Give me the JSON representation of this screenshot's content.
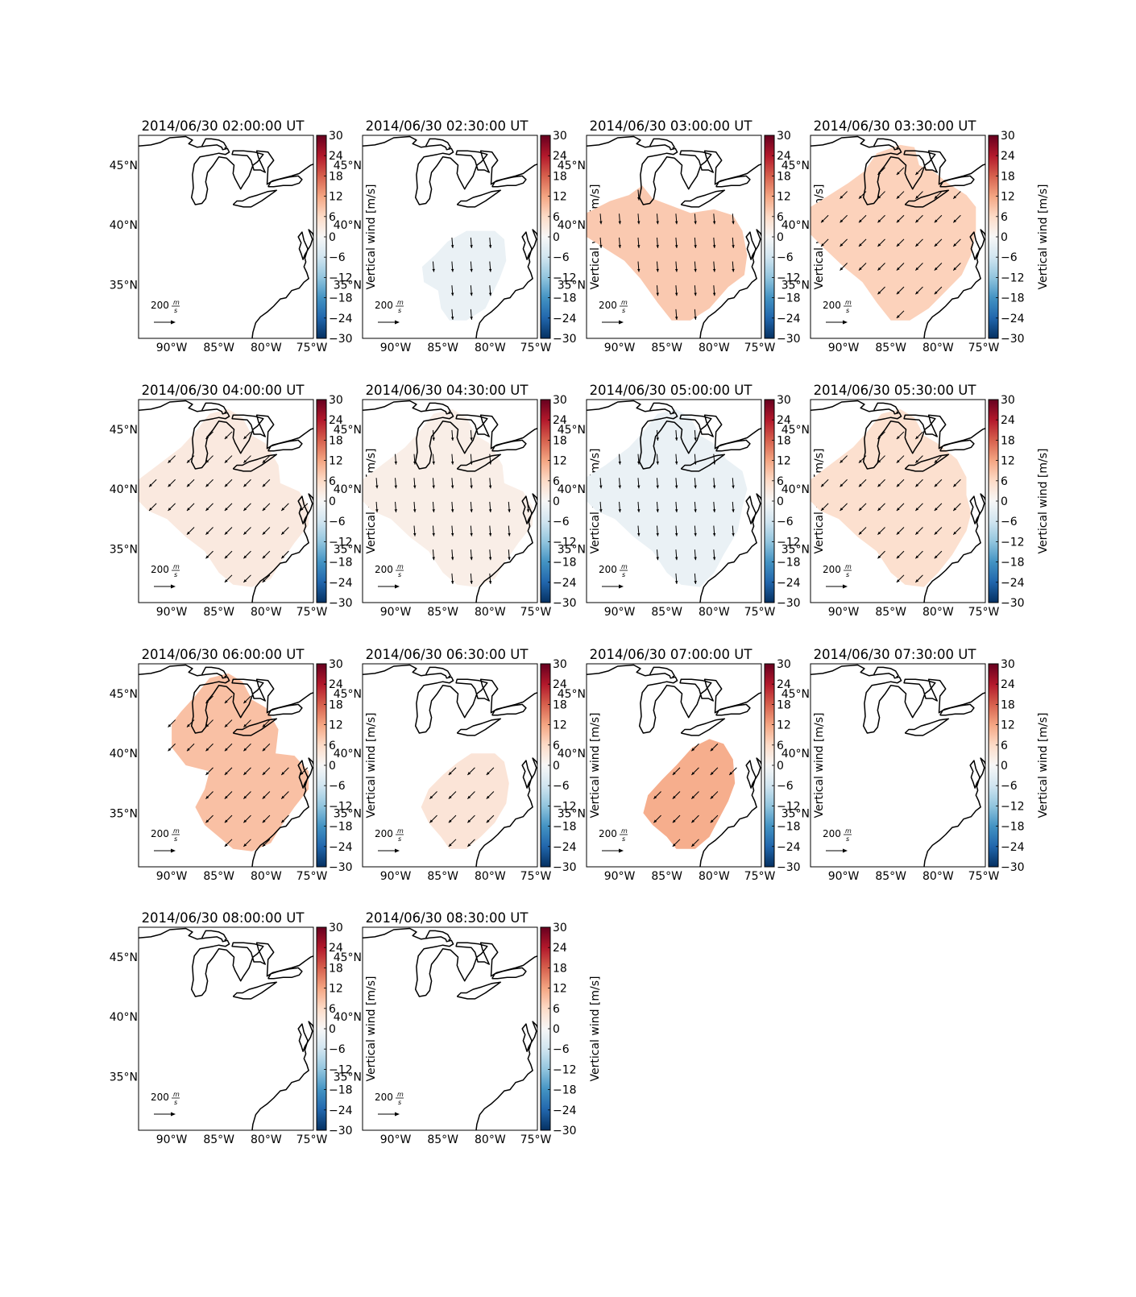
{
  "chart_data": {
    "type": "heatmap",
    "colorbar": {
      "label": "Vertical wind [m/s]",
      "min": -30,
      "max": 30,
      "ticks": [
        "30",
        "24",
        "18",
        "12",
        "6",
        "0",
        "−6",
        "−12",
        "−18",
        "−24",
        "−30"
      ]
    },
    "x_ticks": [
      "90°W",
      "85°W",
      "80°W",
      "75°W"
    ],
    "y_ticks": [
      "45°N",
      "40°N",
      "35°N"
    ],
    "lon_range": [
      -93.5,
      -75
    ],
    "lat_range": [
      30.5,
      47.5
    ],
    "quiver_key_label": "200 m/s",
    "panels": [
      {
        "title": "2014/06/30 02:00:00 UT",
        "vertical_wind": null,
        "arrow_dir": "none"
      },
      {
        "title": "2014/06/30 02:30:00 UT",
        "vertical_wind": -2,
        "arrow_dir": "south"
      },
      {
        "title": "2014/06/30 03:00:00 UT",
        "vertical_wind": 8,
        "arrow_dir": "south"
      },
      {
        "title": "2014/06/30 03:30:00 UT",
        "vertical_wind": 7,
        "arrow_dir": "southwest"
      },
      {
        "title": "2014/06/30 04:00:00 UT",
        "vertical_wind": 3,
        "arrow_dir": "southwest"
      },
      {
        "title": "2014/06/30 04:30:00 UT",
        "vertical_wind": 2,
        "arrow_dir": "south"
      },
      {
        "title": "2014/06/30 05:00:00 UT",
        "vertical_wind": -2,
        "arrow_dir": "south"
      },
      {
        "title": "2014/06/30 05:30:00 UT",
        "vertical_wind": 5,
        "arrow_dir": "southwest"
      },
      {
        "title": "2014/06/30 06:00:00 UT",
        "vertical_wind": 9,
        "arrow_dir": "southwest"
      },
      {
        "title": "2014/06/30 06:30:00 UT",
        "vertical_wind": 4,
        "arrow_dir": "southwest"
      },
      {
        "title": "2014/06/30 07:00:00 UT",
        "vertical_wind": 11,
        "arrow_dir": "southwest"
      },
      {
        "title": "2014/06/30 07:30:00 UT",
        "vertical_wind": null,
        "arrow_dir": "none"
      },
      {
        "title": "2014/06/30 08:00:00 UT",
        "vertical_wind": null,
        "arrow_dir": "none"
      },
      {
        "title": "2014/06/30 08:30:00 UT",
        "vertical_wind": null,
        "arrow_dir": "none"
      }
    ]
  }
}
